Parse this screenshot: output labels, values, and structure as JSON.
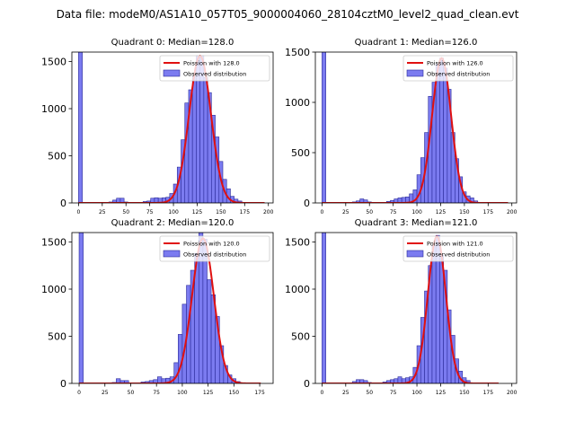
{
  "suptitle": "Data file: modeM0/AS1A10_057T05_9000004060_28104cztM0_level2_quad_clean.evt",
  "colors": {
    "bar_fill": "#7b7bf0",
    "bar_edge": "#2a2a9a",
    "fit_line": "#e01010",
    "axis": "#000000"
  },
  "chart_data": [
    {
      "type": "bar",
      "title": "Quadrant 0: Median=128.0",
      "median": 128.0,
      "xlim": [
        -7,
        205
      ],
      "ylim": [
        0,
        1600
      ],
      "xticks": [
        0,
        25,
        50,
        75,
        100,
        125,
        150,
        175,
        200
      ],
      "yticks": [
        0,
        500,
        1000,
        1500
      ],
      "bin_width": 4,
      "legend": {
        "position": "top-right",
        "fit_label": "Poission with 128.0",
        "hist_label": "Observed distribution"
      },
      "bins": [
        [
          0,
          1600
        ],
        [
          32,
          10
        ],
        [
          36,
          30
        ],
        [
          40,
          50
        ],
        [
          44,
          50
        ],
        [
          48,
          10
        ],
        [
          68,
          15
        ],
        [
          72,
          20
        ],
        [
          76,
          50
        ],
        [
          80,
          55
        ],
        [
          84,
          50
        ],
        [
          88,
          55
        ],
        [
          92,
          60
        ],
        [
          96,
          100
        ],
        [
          100,
          200
        ],
        [
          104,
          380
        ],
        [
          108,
          670
        ],
        [
          112,
          1060
        ],
        [
          116,
          1200
        ],
        [
          120,
          1340
        ],
        [
          124,
          1560
        ],
        [
          128,
          1560
        ],
        [
          132,
          1330
        ],
        [
          136,
          1170
        ],
        [
          140,
          930
        ],
        [
          144,
          700
        ],
        [
          148,
          440
        ],
        [
          152,
          250
        ],
        [
          156,
          150
        ],
        [
          160,
          70
        ],
        [
          164,
          40
        ],
        [
          168,
          20
        ]
      ],
      "fit": {
        "mean": 128.0,
        "sigma": 11.5,
        "peak": 1560,
        "x_range": [
          0,
          196
        ]
      }
    },
    {
      "type": "bar",
      "title": "Quadrant 1: Median=126.0",
      "median": 126.0,
      "xlim": [
        -7,
        205
      ],
      "ylim": [
        0,
        1500
      ],
      "xticks": [
        0,
        25,
        50,
        75,
        100,
        125,
        150,
        175,
        200
      ],
      "yticks": [
        0,
        500,
        1000,
        1500
      ],
      "bin_width": 4,
      "legend": {
        "position": "top-right",
        "fit_label": "Poission with 126.0",
        "hist_label": "Observed distribution"
      },
      "bins": [
        [
          0,
          1500
        ],
        [
          32,
          10
        ],
        [
          36,
          20
        ],
        [
          40,
          40
        ],
        [
          44,
          30
        ],
        [
          48,
          10
        ],
        [
          68,
          15
        ],
        [
          72,
          25
        ],
        [
          76,
          40
        ],
        [
          80,
          50
        ],
        [
          84,
          55
        ],
        [
          88,
          60
        ],
        [
          92,
          90
        ],
        [
          96,
          130
        ],
        [
          100,
          280
        ],
        [
          104,
          450
        ],
        [
          108,
          700
        ],
        [
          112,
          1060
        ],
        [
          116,
          1200
        ],
        [
          120,
          1380
        ],
        [
          124,
          1440
        ],
        [
          128,
          1340
        ],
        [
          132,
          1130
        ],
        [
          136,
          700
        ],
        [
          140,
          440
        ],
        [
          144,
          260
        ],
        [
          148,
          110
        ],
        [
          152,
          70
        ],
        [
          156,
          50
        ],
        [
          160,
          20
        ]
      ],
      "fit": {
        "mean": 126.0,
        "sigma": 10.0,
        "peak": 1440,
        "x_range": [
          0,
          196
        ]
      }
    },
    {
      "type": "bar",
      "title": "Quadrant 2: Median=120.0",
      "median": 120.0,
      "xlim": [
        -7,
        188
      ],
      "ylim": [
        0,
        1600
      ],
      "xticks": [
        0,
        25,
        50,
        75,
        100,
        125,
        150,
        175
      ],
      "yticks": [
        0,
        500,
        1000,
        1500
      ],
      "bin_width": 4,
      "legend": {
        "position": "top-right",
        "fit_label": "Poission with 120.0",
        "hist_label": "Observed distribution"
      },
      "bins": [
        [
          0,
          1600
        ],
        [
          32,
          10
        ],
        [
          36,
          50
        ],
        [
          40,
          30
        ],
        [
          44,
          30
        ],
        [
          60,
          15
        ],
        [
          64,
          20
        ],
        [
          68,
          30
        ],
        [
          72,
          40
        ],
        [
          76,
          70
        ],
        [
          80,
          50
        ],
        [
          84,
          55
        ],
        [
          88,
          70
        ],
        [
          92,
          220
        ],
        [
          96,
          520
        ],
        [
          100,
          840
        ],
        [
          104,
          1040
        ],
        [
          108,
          1200
        ],
        [
          112,
          1380
        ],
        [
          116,
          1600
        ],
        [
          120,
          1530
        ],
        [
          124,
          1100
        ],
        [
          128,
          940
        ],
        [
          132,
          710
        ],
        [
          136,
          400
        ],
        [
          140,
          190
        ],
        [
          144,
          90
        ],
        [
          148,
          50
        ],
        [
          152,
          20
        ]
      ],
      "fit": {
        "mean": 120.0,
        "sigma": 10.5,
        "peak": 1540,
        "x_range": [
          0,
          176
        ]
      }
    },
    {
      "type": "bar",
      "title": "Quadrant 3: Median=121.0",
      "median": 121.0,
      "xlim": [
        -7,
        205
      ],
      "ylim": [
        0,
        1600
      ],
      "xticks": [
        0,
        25,
        50,
        75,
        100,
        125,
        150,
        175,
        200
      ],
      "yticks": [
        0,
        500,
        1000,
        1500
      ],
      "bin_width": 4,
      "legend": {
        "position": "top-right",
        "fit_label": "Poission with 121.0",
        "hist_label": "Observed distribution"
      },
      "bins": [
        [
          0,
          1600
        ],
        [
          32,
          20
        ],
        [
          36,
          40
        ],
        [
          40,
          40
        ],
        [
          44,
          30
        ],
        [
          48,
          10
        ],
        [
          64,
          15
        ],
        [
          68,
          30
        ],
        [
          72,
          40
        ],
        [
          76,
          50
        ],
        [
          80,
          70
        ],
        [
          84,
          50
        ],
        [
          88,
          60
        ],
        [
          92,
          70
        ],
        [
          96,
          170
        ],
        [
          100,
          400
        ],
        [
          104,
          700
        ],
        [
          108,
          980
        ],
        [
          112,
          1250
        ],
        [
          116,
          1460
        ],
        [
          120,
          1570
        ],
        [
          124,
          1360
        ],
        [
          128,
          1200
        ],
        [
          132,
          780
        ],
        [
          136,
          510
        ],
        [
          140,
          260
        ],
        [
          144,
          130
        ],
        [
          148,
          60
        ],
        [
          152,
          30
        ]
      ],
      "fit": {
        "mean": 121.0,
        "sigma": 9.5,
        "peak": 1560,
        "x_range": [
          0,
          186
        ]
      }
    }
  ]
}
